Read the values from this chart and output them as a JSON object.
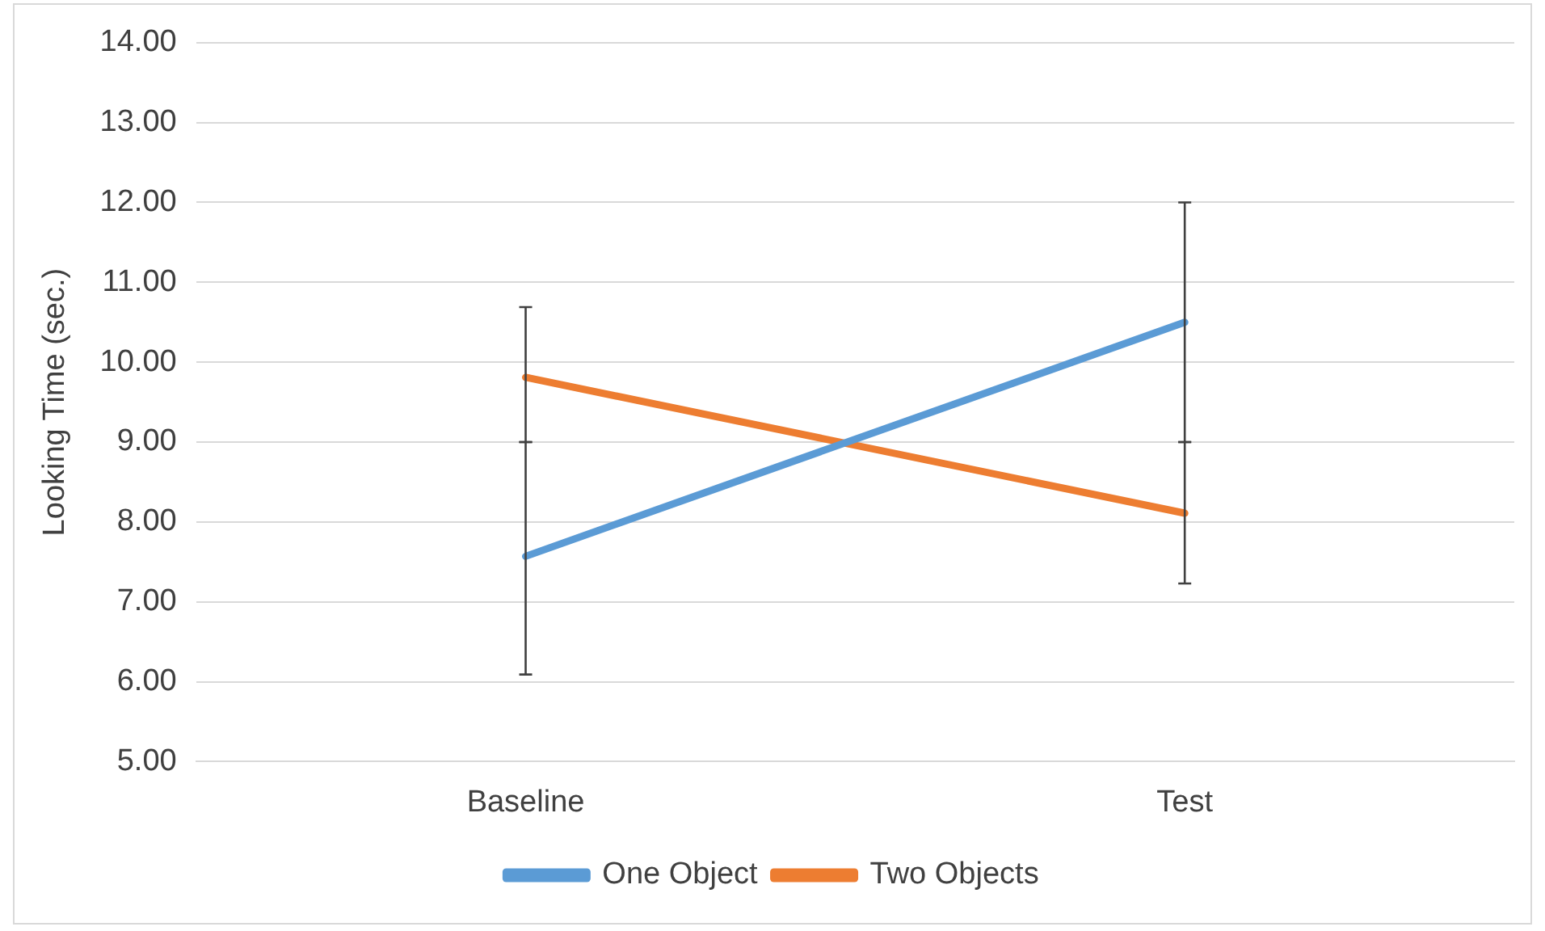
{
  "chart_data": {
    "type": "line",
    "ylabel": "Looking Time (sec.)",
    "categories": [
      "Baseline",
      "Test"
    ],
    "series": [
      {
        "name": "One Object",
        "color": "#5b9bd5",
        "values": [
          7.57,
          10.5
        ],
        "errors": [
          [
            6.09,
            9.0
          ],
          [
            9.0,
            12.0
          ]
        ]
      },
      {
        "name": "Two Objects",
        "color": "#ed7d31",
        "values": [
          9.81,
          8.11
        ],
        "errors": [
          [
            9.0,
            10.69
          ],
          [
            7.23,
            9.0
          ]
        ]
      }
    ],
    "ylim": [
      5,
      14
    ],
    "yticks": [
      {
        "value": 5,
        "label": "5.00"
      },
      {
        "value": 6,
        "label": "6.00"
      },
      {
        "value": 7,
        "label": "7.00"
      },
      {
        "value": 8,
        "label": "8.00"
      },
      {
        "value": 9,
        "label": "9.00"
      },
      {
        "value": 10,
        "label": "10.00"
      },
      {
        "value": 11,
        "label": "11.00"
      },
      {
        "value": 12,
        "label": "12.00"
      },
      {
        "value": 13,
        "label": "13.00"
      },
      {
        "value": 14,
        "label": "14.00"
      }
    ],
    "grid": "y",
    "legend": "bottom",
    "marker": "none",
    "line_style": "solid"
  }
}
